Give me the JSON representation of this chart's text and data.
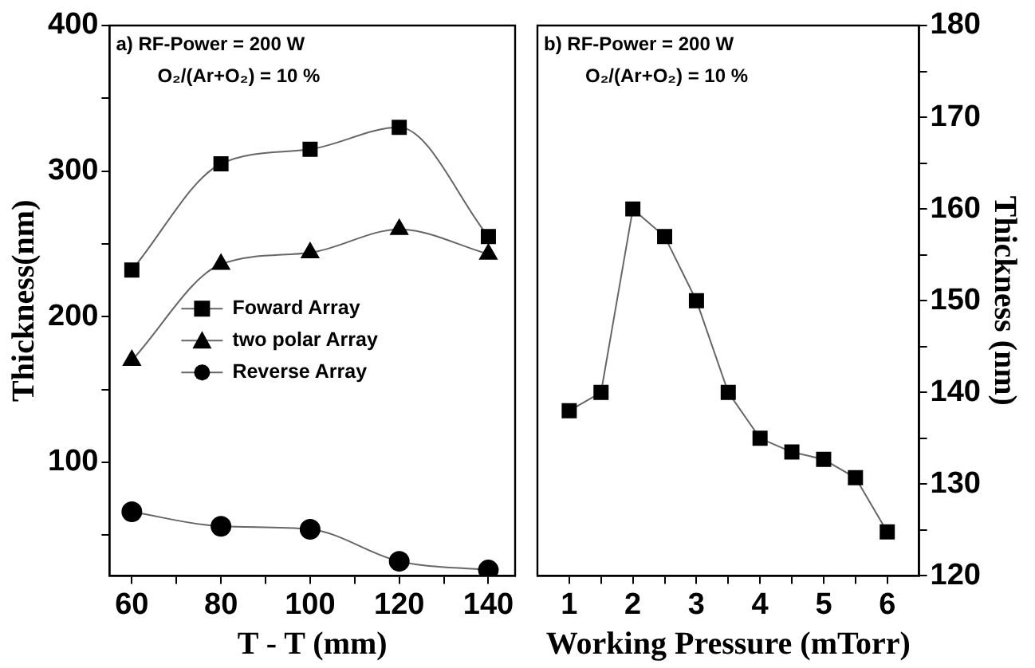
{
  "chart_data": [
    {
      "type": "line",
      "xlabel": "T - T (mm)",
      "ylabel": "Thickness(nm)",
      "annotations": [
        "a) RF-Power = 200 W",
        "O₂/(Ar+O₂) = 10 %"
      ],
      "x": [
        60,
        80,
        100,
        120,
        140
      ],
      "series": [
        {
          "name": "Foward Array",
          "color": "#000000",
          "marker": "square",
          "values": [
            232,
            305,
            315,
            330,
            255
          ]
        },
        {
          "name": "two polar Array",
          "color": "#000000",
          "marker": "triangle",
          "values": [
            170,
            236,
            244,
            260,
            243
          ]
        },
        {
          "name": "Reverse Array",
          "color": "#000000",
          "marker": "circle",
          "values": [
            66,
            56,
            54,
            32,
            26
          ]
        }
      ],
      "xlim": [
        55,
        146
      ],
      "xticks": [
        60,
        {
          "value": 70,
          "label": null
        },
        80,
        {
          "value": 90,
          "label": null
        },
        100,
        {
          "value": 110,
          "label": null
        },
        120,
        {
          "value": 130,
          "label": null
        },
        140
      ],
      "ylim": [
        22,
        400
      ],
      "yticks": [
        {
          "value": 50,
          "label": null
        },
        100,
        {
          "value": 150,
          "label": null
        },
        200,
        {
          "value": 250,
          "label": null
        },
        300,
        {
          "value": 350,
          "label": null
        },
        400
      ],
      "grid": false,
      "legend": "left",
      "line_style": "solid"
    },
    {
      "type": "line",
      "xlabel": "Working Pressure (mTorr)",
      "y2label": "Thickness (nm)",
      "annotations": [
        "b) RF-Power = 200 W",
        "O₂/(Ar+O₂) = 10 %"
      ],
      "x": [
        1,
        1.5,
        2,
        2.5,
        3,
        3.5,
        4,
        4.5,
        5,
        5.5,
        6
      ],
      "series": [
        {
          "color": "#000000",
          "marker": "square",
          "axis": "y2",
          "values": [
            138,
            140,
            160,
            157,
            150,
            140,
            135,
            133.5,
            132.7,
            130.7,
            124.8
          ]
        }
      ],
      "xlim": [
        0.5,
        6.5
      ],
      "xticks": [
        1,
        {
          "value": 1.5,
          "label": null
        },
        2,
        {
          "value": 2.5,
          "label": null
        },
        3,
        {
          "value": 3.5,
          "label": null
        },
        4,
        {
          "value": 4.5,
          "label": null
        },
        5,
        {
          "value": 5.5,
          "label": null
        },
        6
      ],
      "y2lim": [
        120,
        180
      ],
      "y2ticks": [
        120,
        {
          "value": 125,
          "label": null
        },
        130,
        {
          "value": 135,
          "label": null
        },
        140,
        {
          "value": 145,
          "label": null
        },
        150,
        {
          "value": 155,
          "label": null
        },
        160,
        {
          "value": 165,
          "label": null
        },
        170,
        {
          "value": 175,
          "label": null
        },
        180
      ],
      "grid": false,
      "legend": false,
      "line_style": "solid"
    }
  ]
}
